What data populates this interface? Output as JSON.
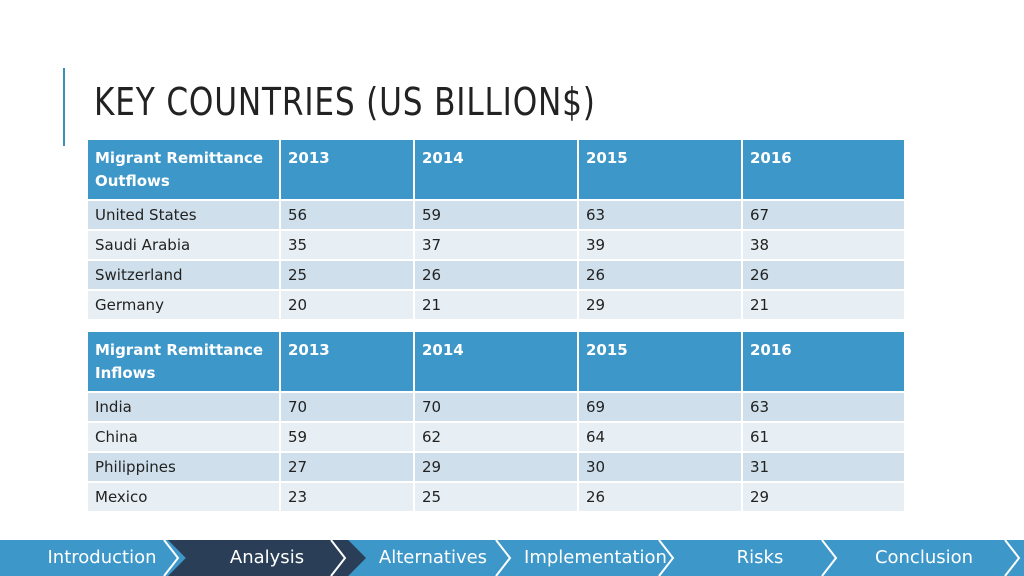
{
  "title": "KEY COUNTRIES (US BILLION$)",
  "tables": [
    {
      "header": [
        "Migrant Remittance Outflows",
        "2013",
        "2014",
        "2015",
        "2016"
      ],
      "rows": [
        [
          "United States",
          "56",
          "59",
          "63",
          "67"
        ],
        [
          "Saudi Arabia",
          "35",
          "37",
          "39",
          "38"
        ],
        [
          "Switzerland",
          "25",
          "26",
          "26",
          "26"
        ],
        [
          "Germany",
          "20",
          "21",
          "29",
          "21"
        ]
      ]
    },
    {
      "header": [
        "Migrant Remittance Inflows",
        "2013",
        "2014",
        "2015",
        "2016"
      ],
      "rows": [
        [
          "India",
          "70",
          "70",
          "69",
          "63"
        ],
        [
          "China",
          "59",
          "62",
          "64",
          "61"
        ],
        [
          "Philippines",
          "27",
          "29",
          "30",
          "31"
        ],
        [
          "Mexico",
          "23",
          "25",
          "26",
          "29"
        ]
      ]
    }
  ],
  "nav": {
    "items": [
      "Introduction",
      "Analysis",
      "Alternatives",
      "Implementation",
      "Risks",
      "Conclusion"
    ],
    "active": "Analysis"
  },
  "colors": {
    "header_bg": "#3d97c9",
    "row_odd": "#cfe0ec",
    "row_even": "#e8eff4",
    "nav_bg": "#3d97c9",
    "nav_active": "#2a3e58"
  }
}
